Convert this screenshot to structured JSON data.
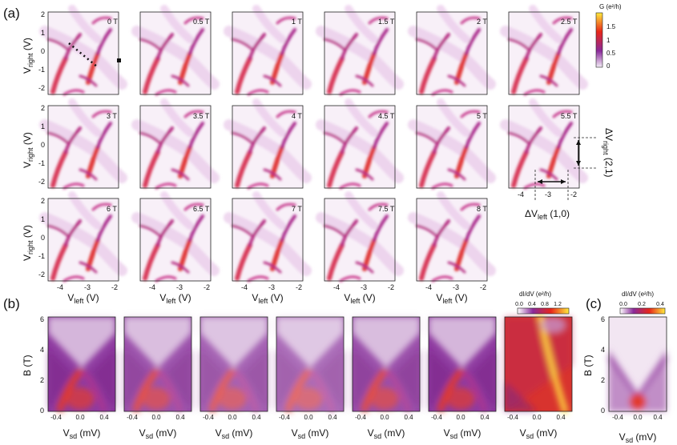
{
  "figure": {
    "panel_a": {
      "label": "(a)",
      "fields": [
        "0 T",
        "0.5 T",
        "1 T",
        "1.5 T",
        "2 T",
        "2.5 T",
        "3 T",
        "3.5 T",
        "4 T",
        "4.5 T",
        "5 T",
        "5.5 T",
        "6 T",
        "6.5 T",
        "7 T",
        "7.5 T",
        "8 T"
      ],
      "y_ticks": [
        "2",
        "1",
        "0",
        "-1",
        "-2"
      ],
      "x_ticks": [
        "-4",
        "-3",
        "-2"
      ],
      "y_label_main": "V",
      "y_label_sub": "right",
      "y_label_unit": " (V)",
      "x_label_main": "V",
      "x_label_sub": "left",
      "x_label_unit": " (V)",
      "colorbar": {
        "title": "G (e²/h)",
        "ticks": [
          "1.5",
          "1",
          "0.5",
          "0"
        ]
      },
      "annotations": {
        "dv_right_main": "ΔV",
        "dv_right_sub": "right",
        "dv_right_idx": " (2,1)",
        "dv_left_main": "ΔV",
        "dv_left_sub": "left",
        "dv_left_idx": " (1,0)"
      }
    },
    "panel_b": {
      "label": "(b)",
      "y_ticks": [
        "6",
        "4",
        "2",
        "0"
      ],
      "x_ticks": [
        "-0.4",
        "0.0",
        "0.4"
      ],
      "y_label": "B (T)",
      "x_label_main": "V",
      "x_label_sub": "sd",
      "x_label_unit": " (mV)",
      "colorbar": {
        "title": "dI/dV (e²/h)",
        "ticks": [
          "0.0",
          "0.4",
          "0.8",
          "1.2"
        ]
      }
    },
    "panel_c": {
      "label": "(c)",
      "y_ticks": [
        "6",
        "4",
        "2",
        "0"
      ],
      "x_ticks": [
        "-0.4",
        "0.0",
        "0.4"
      ],
      "y_label": "B (T)",
      "x_label_main": "V",
      "x_label_sub": "sd",
      "x_label_unit": " (mV)",
      "colorbar": {
        "title": "dI/dV (e²/h)",
        "ticks": [
          "0.0",
          "0.2",
          "0.4"
        ]
      }
    }
  },
  "colors": {
    "low": "#f6eef8",
    "mid": "#8a2a9a",
    "high": "#e8261a",
    "top": "#ffe94a"
  }
}
